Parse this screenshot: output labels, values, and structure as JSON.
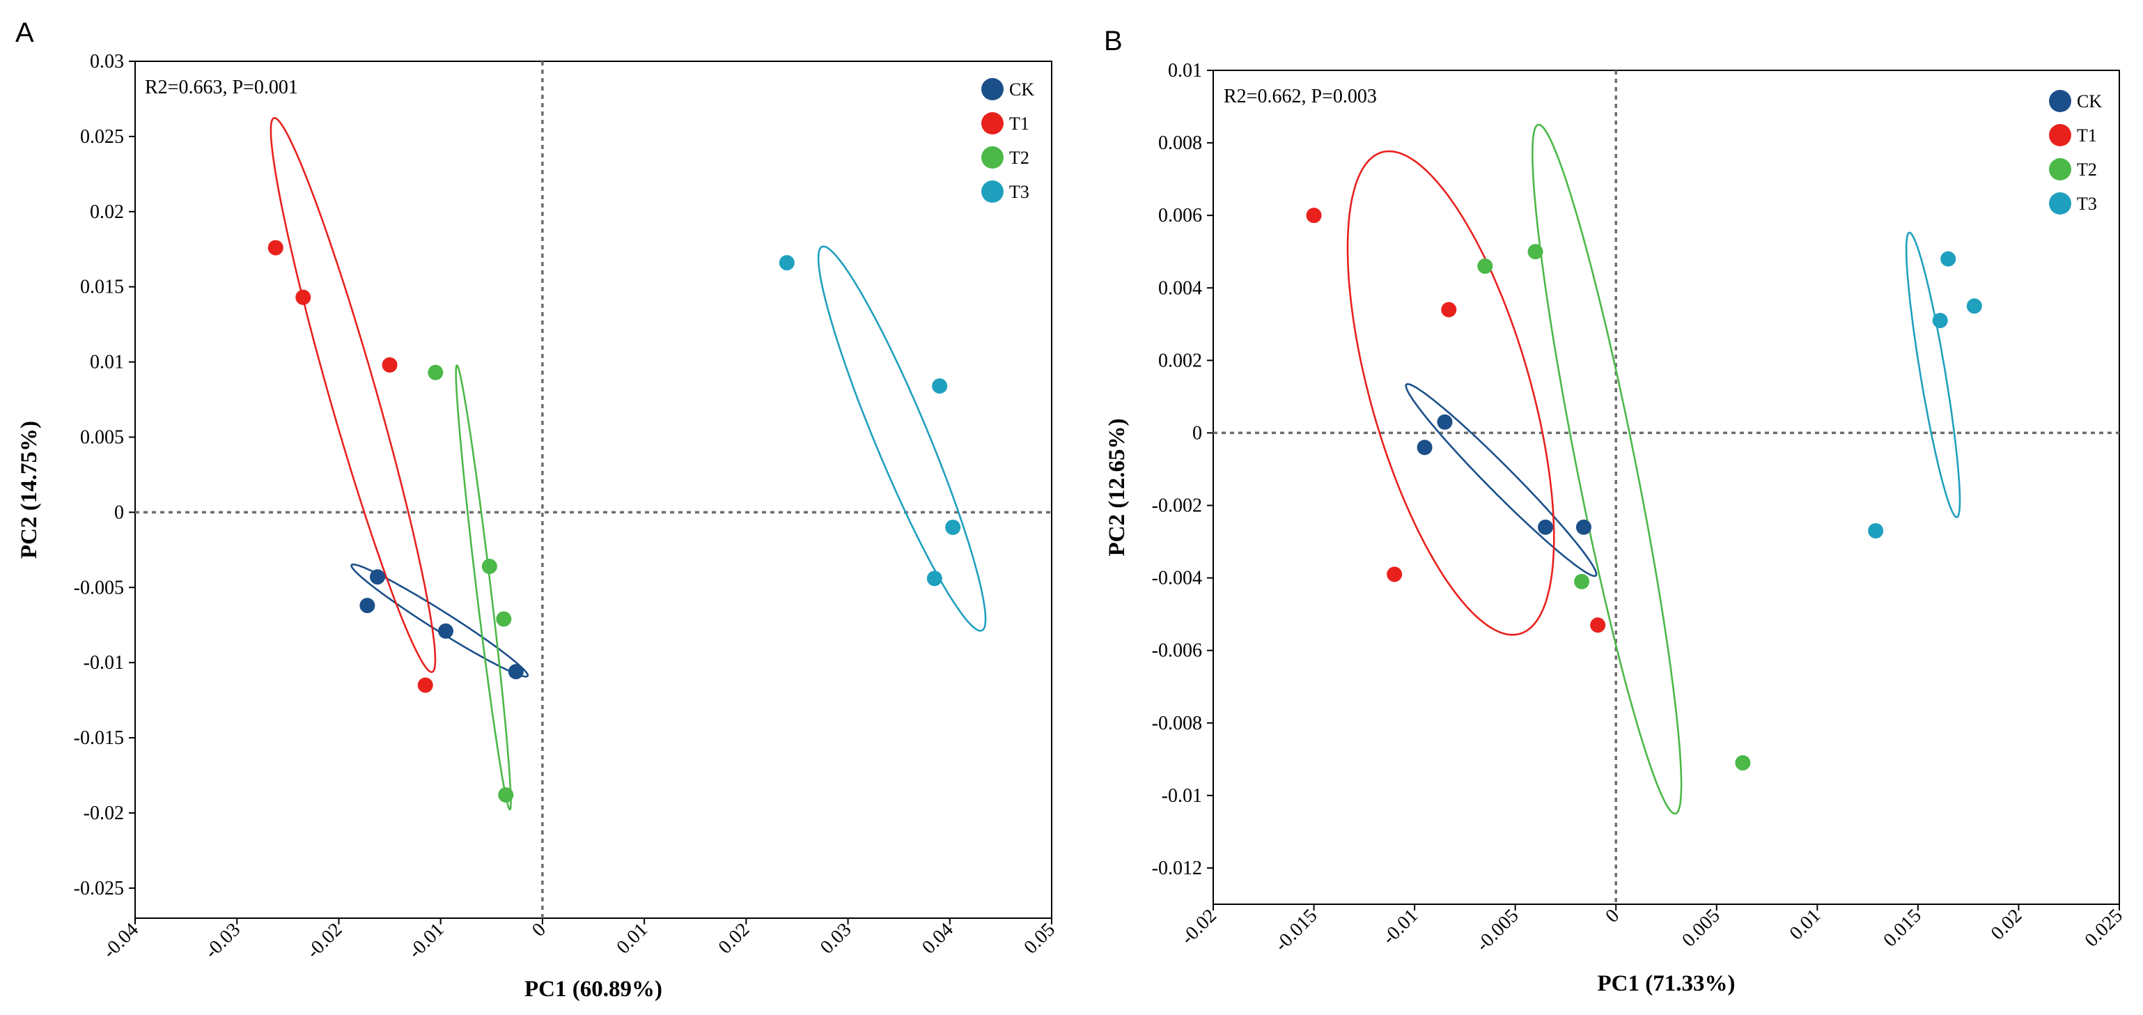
{
  "colors": {
    "CK": "#1B4F8A",
    "T1": "#E8211D",
    "T2": "#4BB848",
    "T3": "#1FA0BE"
  },
  "chart_data": [
    {
      "type": "scatter",
      "panel_label": "A",
      "stat_text": "R2=0.663, P=0.001",
      "xlabel": "PC1 (60.89%)",
      "ylabel": "PC2 (14.75%)",
      "xlim": [
        -0.04,
        0.05
      ],
      "ylim": [
        -0.027,
        0.03
      ],
      "xticks": [
        -0.04,
        -0.03,
        -0.02,
        -0.01,
        0,
        0.01,
        0.02,
        0.03,
        0.04,
        0.05
      ],
      "xtick_labels": [
        "-0.04",
        "-0.03",
        "-0.02",
        "-0.01",
        "0",
        "0.01",
        "0.02",
        "0.03",
        "0.04",
        "0.05"
      ],
      "yticks": [
        -0.025,
        -0.02,
        -0.015,
        -0.01,
        -0.005,
        0,
        0.005,
        0.01,
        0.015,
        0.02,
        0.025,
        0.03
      ],
      "ytick_labels": [
        "-0.025",
        "-0.02",
        "-0.015",
        "-0.01",
        "-0.005",
        "0",
        "0.005",
        "0.01",
        "0.015",
        "0.02",
        "0.025",
        "0.03"
      ],
      "legend": [
        "CK",
        "T1",
        "T2",
        "T3"
      ],
      "series": [
        {
          "name": "CK",
          "points": [
            [
              -0.0162,
              -0.0043
            ],
            [
              -0.0172,
              -0.0062
            ],
            [
              -0.0095,
              -0.0079
            ],
            [
              -0.0026,
              -0.0106
            ]
          ],
          "ellipse": {
            "cx": -0.0101,
            "cy": -0.0072,
            "rx": 0.0094,
            "ry": 0.0007,
            "angle_deg": -23
          }
        },
        {
          "name": "T1",
          "points": [
            [
              -0.0262,
              0.0176
            ],
            [
              -0.0235,
              0.0143
            ],
            [
              -0.015,
              0.0098
            ],
            [
              -0.0115,
              -0.0115
            ]
          ],
          "ellipse": {
            "cx": -0.0186,
            "cy": 0.0078,
            "rx": 0.02,
            "ry": 0.0022,
            "angle_deg": -67
          }
        },
        {
          "name": "T2",
          "points": [
            [
              -0.0105,
              0.0093
            ],
            [
              -0.0052,
              -0.0036
            ],
            [
              -0.0038,
              -0.0071
            ],
            [
              -0.0036,
              -0.0188
            ]
          ],
          "ellipse": {
            "cx": -0.0058,
            "cy": -0.005,
            "rx": 0.015,
            "ry": 0.0007,
            "angle_deg": -80
          }
        },
        {
          "name": "T3",
          "points": [
            [
              0.024,
              0.0166
            ],
            [
              0.039,
              0.0084
            ],
            [
              0.0403,
              -0.001
            ],
            [
              0.0385,
              -0.0044
            ]
          ],
          "ellipse": {
            "cx": 0.0353,
            "cy": 0.0049,
            "rx": 0.015,
            "ry": 0.0024,
            "angle_deg": -58
          }
        }
      ]
    },
    {
      "type": "scatter",
      "panel_label": "B",
      "stat_text": "R2=0.662, P=0.003",
      "xlabel": "PC1 (71.33%)",
      "ylabel": "PC2 (12.65%)",
      "xlim": [
        -0.02,
        0.025
      ],
      "ylim": [
        -0.013,
        0.01
      ],
      "xticks": [
        -0.02,
        -0.015,
        -0.01,
        -0.005,
        0,
        0.005,
        0.01,
        0.015,
        0.02,
        0.025
      ],
      "xtick_labels": [
        "-0.02",
        "-0.015",
        "-0.01",
        "-0.005",
        "0",
        "0.005",
        "0.01",
        "0.015",
        "0.02",
        "0.025"
      ],
      "yticks": [
        -0.012,
        -0.01,
        -0.008,
        -0.006,
        -0.004,
        -0.002,
        0,
        0.002,
        0.004,
        0.006,
        0.008,
        0.01
      ],
      "ytick_labels": [
        "-0.012",
        "-0.01",
        "-0.008",
        "-0.006",
        "-0.004",
        "-0.002",
        "0",
        "0.002",
        "0.004",
        "0.006",
        "0.008",
        "0.01"
      ],
      "legend": [
        "CK",
        "T1",
        "T2",
        "T3"
      ],
      "series": [
        {
          "name": "CK",
          "points": [
            [
              -0.0085,
              0.0003
            ],
            [
              -0.0095,
              -0.0004
            ],
            [
              -0.0035,
              -0.0026
            ],
            [
              -0.0016,
              -0.0026
            ]
          ],
          "ellipse": {
            "cx": -0.0057,
            "cy": -0.0013,
            "rx": 0.0054,
            "ry": 0.00045,
            "angle_deg": -29
          }
        },
        {
          "name": "T1",
          "points": [
            [
              -0.015,
              0.006
            ],
            [
              -0.0083,
              0.0034
            ],
            [
              -0.011,
              -0.0039
            ],
            [
              -0.0009,
              -0.0053
            ]
          ],
          "ellipse": {
            "cx": -0.0082,
            "cy": 0.0011,
            "rx": 0.0076,
            "ry": 0.0036,
            "angle_deg": -57
          }
        },
        {
          "name": "T2",
          "points": [
            [
              -0.0065,
              0.0046
            ],
            [
              -0.004,
              0.005
            ],
            [
              -0.0017,
              -0.0041
            ],
            [
              0.0063,
              -0.0091
            ]
          ],
          "ellipse": {
            "cx": -0.00045,
            "cy": -0.001,
            "rx": 0.0101,
            "ry": 0.0014,
            "angle_deg": -70
          }
        },
        {
          "name": "T3",
          "points": [
            [
              0.0165,
              0.0048
            ],
            [
              0.0161,
              0.0031
            ],
            [
              0.0178,
              0.0035
            ],
            [
              0.0129,
              -0.0027
            ]
          ],
          "ellipse": {
            "cx": 0.01575,
            "cy": 0.0016,
            "rx": 0.0041,
            "ry": 0.0006,
            "angle_deg": -73
          }
        }
      ]
    }
  ]
}
